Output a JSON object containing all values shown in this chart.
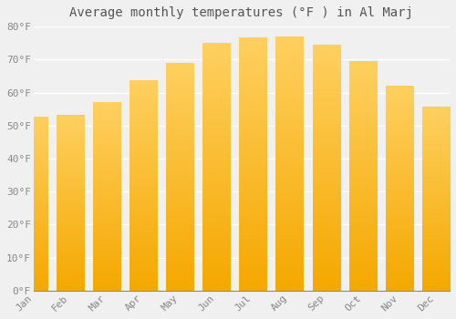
{
  "title": "Average monthly temperatures (°F ) in Al Marj",
  "months": [
    "Jan",
    "Feb",
    "Mar",
    "Apr",
    "May",
    "Jun",
    "Jul",
    "Aug",
    "Sep",
    "Oct",
    "Nov",
    "Dec"
  ],
  "values": [
    52.5,
    53,
    57,
    63.5,
    69,
    75,
    76.5,
    77,
    74.5,
    69.5,
    62,
    55.5
  ],
  "bar_color_top": "#FFD060",
  "bar_color_bottom": "#F5A800",
  "bar_edge_color": "#E09000",
  "background_color": "#f0f0f0",
  "plot_bg_color": "#f0f0f0",
  "grid_color": "#ffffff",
  "text_color": "#888888",
  "title_color": "#555555",
  "ylim": [
    0,
    80
  ],
  "yticks": [
    0,
    10,
    20,
    30,
    40,
    50,
    60,
    70,
    80
  ],
  "ytick_labels": [
    "0°F",
    "10°F",
    "20°F",
    "30°F",
    "40°F",
    "50°F",
    "60°F",
    "70°F",
    "80°F"
  ],
  "title_fontsize": 10,
  "tick_fontsize": 8,
  "bar_width": 0.75
}
